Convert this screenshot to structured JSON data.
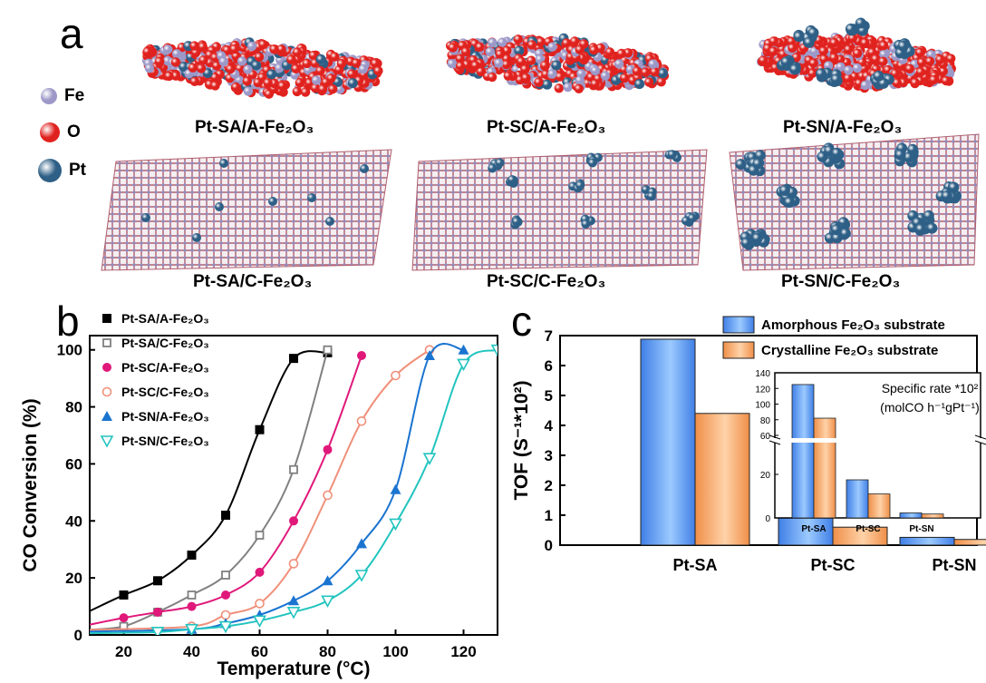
{
  "panel_a": {
    "letter": "a",
    "legend": [
      {
        "name": "Fe",
        "color": "#9c98c8"
      },
      {
        "name": "O",
        "color": "#e0221f"
      },
      {
        "name": "Pt",
        "color": "#2e5f86"
      }
    ],
    "structures": [
      {
        "label": "Pt-SA/A-Fe₂O₃",
        "kind": "amorphous",
        "pt": "single-atom"
      },
      {
        "label": "Pt-SC/A-Fe₂O₃",
        "kind": "amorphous",
        "pt": "sub-nano-cluster"
      },
      {
        "label": "Pt-SN/A-Fe₂O₃",
        "kind": "amorphous",
        "pt": "nanoparticle"
      },
      {
        "label": "Pt-SA/C-Fe₂O₃",
        "kind": "crystalline",
        "pt": "single-atom"
      },
      {
        "label": "Pt-SC/C-Fe₂O₃",
        "kind": "crystalline",
        "pt": "sub-nano-cluster"
      },
      {
        "label": "Pt-SN/C-Fe₂O₃",
        "kind": "crystalline",
        "pt": "nanoparticle"
      }
    ]
  },
  "chart_data": [
    {
      "panel": "b",
      "type": "scatter",
      "xlabel": "Temperature (°C)",
      "ylabel": "CO Conversion (%)",
      "xlim": [
        10,
        130
      ],
      "ylim": [
        0,
        105
      ],
      "xticks": [
        20,
        40,
        60,
        80,
        100,
        120
      ],
      "yticks": [
        0,
        20,
        40,
        60,
        80,
        100
      ],
      "legend_position": "top-left",
      "series": [
        {
          "name": "Pt-SA/A-Fe₂O₃",
          "color": "#000000",
          "marker": "square-filled",
          "x": [
            20,
            30,
            40,
            50,
            60,
            70,
            80
          ],
          "y": [
            14,
            19,
            28,
            42,
            72,
            97,
            99
          ]
        },
        {
          "name": "Pt-SA/C-Fe₂O₃",
          "color": "#808080",
          "marker": "square-open",
          "x": [
            20,
            30,
            40,
            50,
            60,
            70,
            80
          ],
          "y": [
            3,
            8,
            14,
            21,
            35,
            58,
            100
          ]
        },
        {
          "name": "Pt-SC/A-Fe₂O₃",
          "color": "#e0187a",
          "marker": "circle-filled",
          "x": [
            20,
            30,
            40,
            50,
            60,
            70,
            80,
            90
          ],
          "y": [
            6,
            8,
            10,
            14,
            22,
            40,
            65,
            98
          ]
        },
        {
          "name": "Pt-SC/C-Fe₂O₃",
          "color": "#f0907a",
          "marker": "circle-open",
          "x": [
            40,
            50,
            60,
            70,
            80,
            90,
            100,
            110
          ],
          "y": [
            3,
            7,
            11,
            25,
            49,
            75,
            91,
            100
          ]
        },
        {
          "name": "Pt-SN/A-Fe₂O₃",
          "color": "#1a74d0",
          "marker": "triangle-up-filled",
          "x": [
            40,
            50,
            60,
            70,
            80,
            90,
            100,
            110,
            120
          ],
          "y": [
            2,
            4,
            7,
            12,
            19,
            32,
            51,
            98,
            100
          ]
        },
        {
          "name": "Pt-SN/C-Fe₂O₃",
          "color": "#22c4bf",
          "marker": "triangle-down-open",
          "x": [
            30,
            40,
            50,
            60,
            70,
            80,
            90,
            100,
            110,
            120,
            130
          ],
          "y": [
            1,
            2,
            3,
            5,
            8,
            12,
            21,
            39,
            62,
            95,
            100
          ]
        }
      ]
    },
    {
      "panel": "c",
      "type": "bar",
      "ylabel": "TOF (S⁻¹*10²)",
      "ylim": [
        0,
        7
      ],
      "yticks": [
        0,
        1,
        2,
        3,
        4,
        5,
        6,
        7
      ],
      "categories": [
        "Pt-SA",
        "Pt-SC",
        "Pt-SN"
      ],
      "legend_position": "top-right",
      "series": [
        {
          "name": "Amorphous Fe₂O₃ substrate",
          "color": "#4a8eea",
          "values": [
            6.88,
            0.96,
            0.26
          ]
        },
        {
          "name": "Crystalline Fe₂O₃ substrate",
          "color": "#f49a55",
          "values": [
            4.4,
            0.6,
            0.19
          ]
        }
      ],
      "inset": {
        "type": "bar",
        "title_line1": "Specific rate *10²",
        "title_line2": "(molCO h⁻¹gPt⁻¹)",
        "categories": [
          "Pt-SA",
          "Pt-SC",
          "Pt-SN"
        ],
        "yticks_lower": [
          0,
          20
        ],
        "yticks_upper": [
          60,
          80,
          100,
          120,
          140
        ],
        "axis_break": [
          20,
          60
        ],
        "series": [
          {
            "name": "Amorphous",
            "values": [
              125,
              17.5,
              2.3
            ]
          },
          {
            "name": "Crystalline",
            "values": [
              82,
              11,
              1.8
            ]
          }
        ]
      }
    }
  ]
}
